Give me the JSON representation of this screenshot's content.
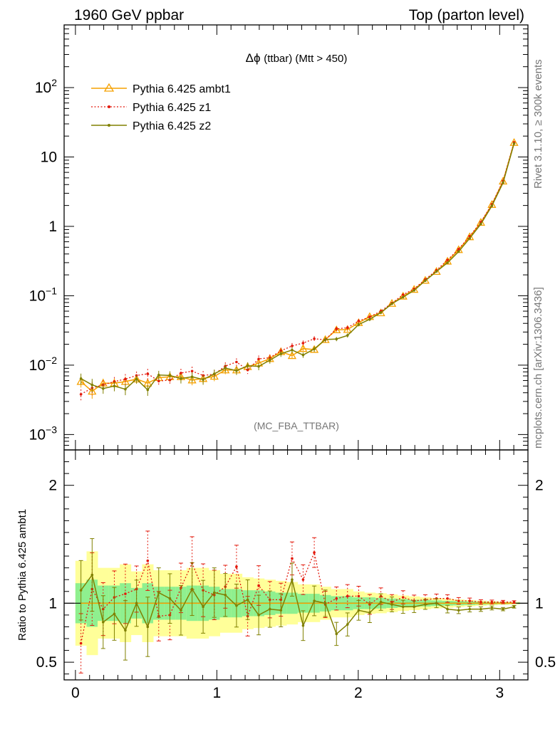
{
  "header": {
    "left": "1960 GeV ppbar",
    "right": "Top (parton level)"
  },
  "side_text": {
    "upper": "Rivet 3.1.10, ≥ 300k events",
    "lower": "mcplots.cern.ch [arXiv:1306.3436]"
  },
  "chart_data": {
    "type": "line",
    "title_main": "Δϕ",
    "title_rest": "(ttbar) (Mtt > 450)",
    "watermark": "(MC_FBA_TTBAR)",
    "ratio_ylabel": "Ratio to Pythia 6.425 ambt1",
    "xlim": [
      -0.08,
      3.2
    ],
    "ylim_main": [
      0.0006,
      800
    ],
    "yscale_main": "log",
    "ylim_ratio": [
      0.35,
      2.3
    ],
    "x_ticks": [
      0,
      1,
      2,
      3
    ],
    "main_ticks": [
      {
        "value": 0.001,
        "base": "10",
        "exp": "−3"
      },
      {
        "value": 0.01,
        "base": "10",
        "exp": "−2"
      },
      {
        "value": 0.1,
        "base": "10",
        "exp": "−1"
      },
      {
        "value": 1,
        "base": "1",
        "exp": ""
      },
      {
        "value": 10,
        "base": "10",
        "exp": ""
      },
      {
        "value": 100,
        "base": "10",
        "exp": "2"
      }
    ],
    "ratio_ticks": [
      0.5,
      1,
      2
    ],
    "x": [
      0.039,
      0.118,
      0.196,
      0.275,
      0.353,
      0.432,
      0.511,
      0.589,
      0.668,
      0.746,
      0.825,
      0.903,
      0.982,
      1.06,
      1.139,
      1.218,
      1.296,
      1.375,
      1.453,
      1.532,
      1.61,
      1.689,
      1.767,
      1.846,
      1.924,
      2.003,
      2.081,
      2.16,
      2.238,
      2.317,
      2.395,
      2.474,
      2.553,
      2.631,
      2.71,
      2.788,
      2.867,
      2.945,
      3.024,
      3.102
    ],
    "series": [
      {
        "name": "Pythia 6.425 ambt1",
        "color": "#f5a100",
        "style": "solid-triangles",
        "values": [
          0.0058,
          0.0042,
          0.0055,
          0.0055,
          0.0058,
          0.0063,
          0.0055,
          0.0066,
          0.0068,
          0.0068,
          0.0061,
          0.0064,
          0.0069,
          0.0085,
          0.0085,
          0.0095,
          0.0107,
          0.0124,
          0.0156,
          0.0137,
          0.0173,
          0.0168,
          0.0233,
          0.0322,
          0.0326,
          0.0409,
          0.05,
          0.0566,
          0.0775,
          0.0985,
          0.1232,
          0.1667,
          0.2236,
          0.3146,
          0.4606,
          0.7066,
          1.1385,
          2.0599,
          4.4762,
          16.12
        ],
        "ratio": [
          1,
          1,
          1,
          1,
          1,
          1,
          1,
          1,
          1,
          1,
          1,
          1,
          1,
          1,
          1,
          1,
          1,
          1,
          1,
          1,
          1,
          1,
          1,
          1,
          1,
          1,
          1,
          1,
          1,
          1,
          1,
          1,
          1,
          1,
          1,
          1,
          1,
          1,
          1,
          1
        ]
      },
      {
        "name": "Pythia 6.425 z1",
        "color": "#e3190c",
        "style": "dotted",
        "values": [
          0.0038,
          0.0047,
          0.0052,
          0.0058,
          0.0063,
          0.0071,
          0.0075,
          0.0059,
          0.0061,
          0.0077,
          0.0082,
          0.0071,
          0.0074,
          0.0097,
          0.0111,
          0.0085,
          0.0123,
          0.0128,
          0.0161,
          0.0189,
          0.0208,
          0.024,
          0.0232,
          0.0334,
          0.0346,
          0.0433,
          0.0495,
          0.06,
          0.0783,
          0.1034,
          0.1257,
          0.1717,
          0.2326,
          0.3272,
          0.4698,
          0.7208,
          1.1499,
          2.0805,
          4.521,
          16.28
        ],
        "ratio": [
          0.66,
          1.12,
          0.95,
          1.05,
          1.08,
          1.12,
          1.36,
          0.89,
          0.9,
          1.13,
          1.34,
          1.11,
          1.07,
          1.14,
          1.31,
          0.89,
          1.15,
          1.03,
          1.03,
          1.38,
          1.2,
          1.43,
          0.99,
          1.04,
          1.06,
          1.06,
          0.99,
          1.06,
          1.01,
          1.05,
          1.02,
          1.03,
          1.04,
          1.04,
          1.02,
          1.02,
          1.01,
          1.01,
          1.01,
          1.01
        ]
      },
      {
        "name": "Pythia 6.425 z2",
        "color": "#808000",
        "style": "solid",
        "values": [
          0.0064,
          0.0052,
          0.0046,
          0.005,
          0.0045,
          0.0063,
          0.0044,
          0.0072,
          0.0071,
          0.0064,
          0.0068,
          0.0062,
          0.0075,
          0.0091,
          0.0083,
          0.0098,
          0.0096,
          0.0118,
          0.0146,
          0.0165,
          0.014,
          0.0171,
          0.0234,
          0.0238,
          0.0268,
          0.0385,
          0.0458,
          0.0572,
          0.0767,
          0.0955,
          0.1195,
          0.165,
          0.2236,
          0.2989,
          0.433,
          0.6713,
          1.0816,
          1.9775,
          4.2524,
          15.63
        ],
        "ratio": [
          1.11,
          1.24,
          0.84,
          0.91,
          0.77,
          1.0,
          0.8,
          1.09,
          1.04,
          0.94,
          1.12,
          0.97,
          1.09,
          1.07,
          0.98,
          1.03,
          0.9,
          0.95,
          0.94,
          1.2,
          0.81,
          1.02,
          1.0,
          0.74,
          0.82,
          0.94,
          0.92,
          1.01,
          0.99,
          0.97,
          0.97,
          0.99,
          1.0,
          0.95,
          0.94,
          0.95,
          0.95,
          0.96,
          0.95,
          0.97
        ]
      }
    ],
    "band_inner": [
      0.17,
      0.2,
      0.15,
      0.15,
      0.17,
      0.13,
      0.17,
      0.14,
      0.14,
      0.14,
      0.15,
      0.15,
      0.14,
      0.12,
      0.12,
      0.11,
      0.11,
      0.1,
      0.09,
      0.09,
      0.08,
      0.08,
      0.07,
      0.06,
      0.06,
      0.05,
      0.05,
      0.045,
      0.04,
      0.035,
      0.03,
      0.028,
      0.024,
      0.02,
      0.018,
      0.015,
      0.012,
      0.01,
      0.008,
      0.006
    ],
    "band_outer": [
      0.36,
      0.44,
      0.3,
      0.3,
      0.33,
      0.27,
      0.33,
      0.28,
      0.28,
      0.28,
      0.3,
      0.3,
      0.28,
      0.25,
      0.25,
      0.22,
      0.21,
      0.2,
      0.19,
      0.18,
      0.16,
      0.16,
      0.14,
      0.12,
      0.12,
      0.1,
      0.09,
      0.085,
      0.075,
      0.065,
      0.058,
      0.05,
      0.044,
      0.038,
      0.032,
      0.027,
      0.022,
      0.018,
      0.014,
      0.011
    ],
    "band_colors": {
      "inner": "#8ff08f",
      "outer": "#ffff99"
    }
  }
}
